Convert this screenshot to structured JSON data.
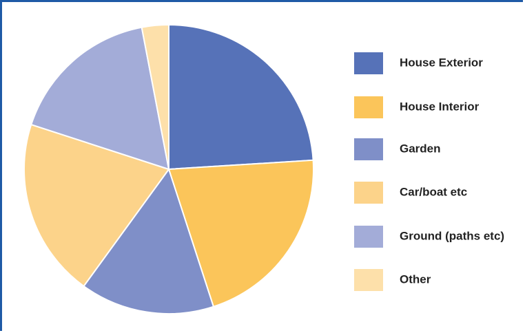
{
  "chart_data": {
    "type": "pie",
    "categories": [
      "House Exterior",
      "House Interior",
      "Garden",
      "Car/boat etc",
      "Ground (paths etc)",
      "Other"
    ],
    "values": [
      24,
      21,
      15,
      20,
      17,
      3
    ],
    "colors": [
      "#5672b8",
      "#fbc55a",
      "#7f8fc8",
      "#fcd38a",
      "#a3acd8",
      "#fde0aa"
    ]
  }
}
